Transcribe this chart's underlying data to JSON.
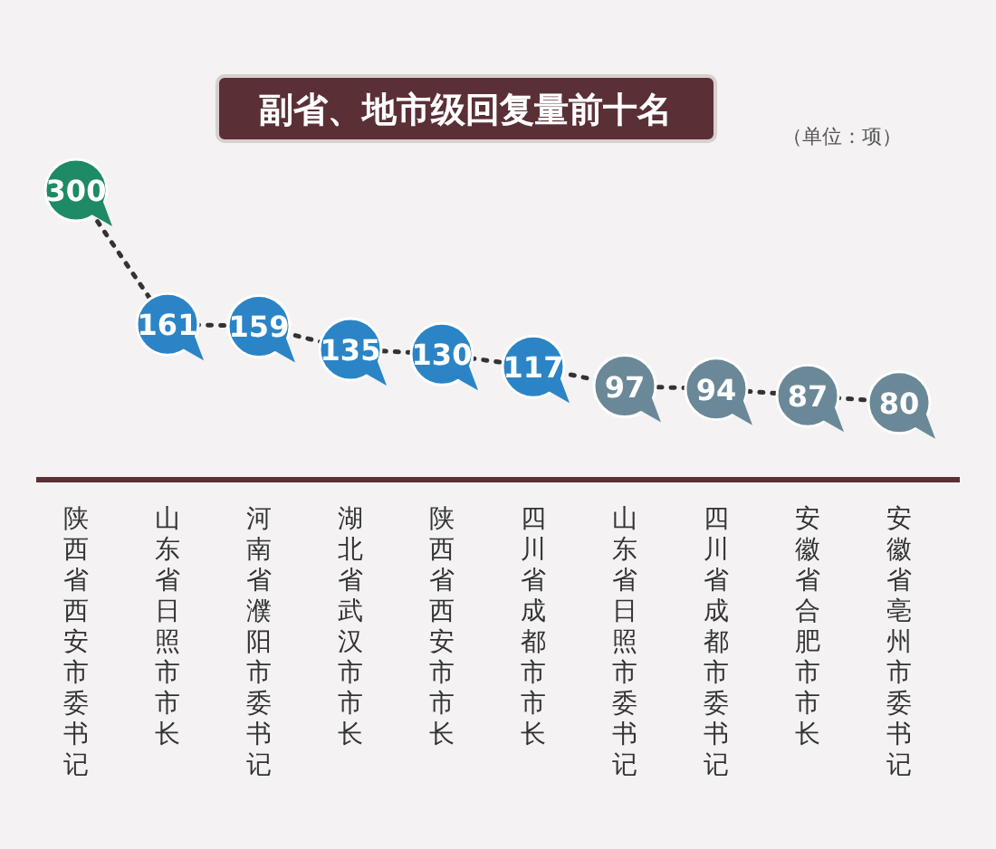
{
  "chart_data": {
    "type": "line",
    "title": "副省、地市级回复量前十名",
    "annotations": [
      "（单位：项）"
    ],
    "categories": [
      "陕西省西安市委书记",
      "山东省日照市市长",
      "河南省濮阳市委书记",
      "湖北省武汉市市长",
      "陕西省西安市市长",
      "四川省成都市市长",
      "山东省日照市委书记",
      "四川省成都市委书记",
      "安徽省合肥市市长",
      "安徽省亳州市委书记"
    ],
    "values": [
      300,
      161,
      159,
      135,
      130,
      117,
      97,
      94,
      87,
      80
    ],
    "colors": [
      "#1e8a66",
      "#2b84c6",
      "#2b84c6",
      "#2b84c6",
      "#2b84c6",
      "#2b84c6",
      "#6a8898",
      "#6a8898",
      "#6a8898",
      "#6a8898"
    ],
    "data_labels": true,
    "marker": "circle",
    "line_style": "dotted"
  }
}
